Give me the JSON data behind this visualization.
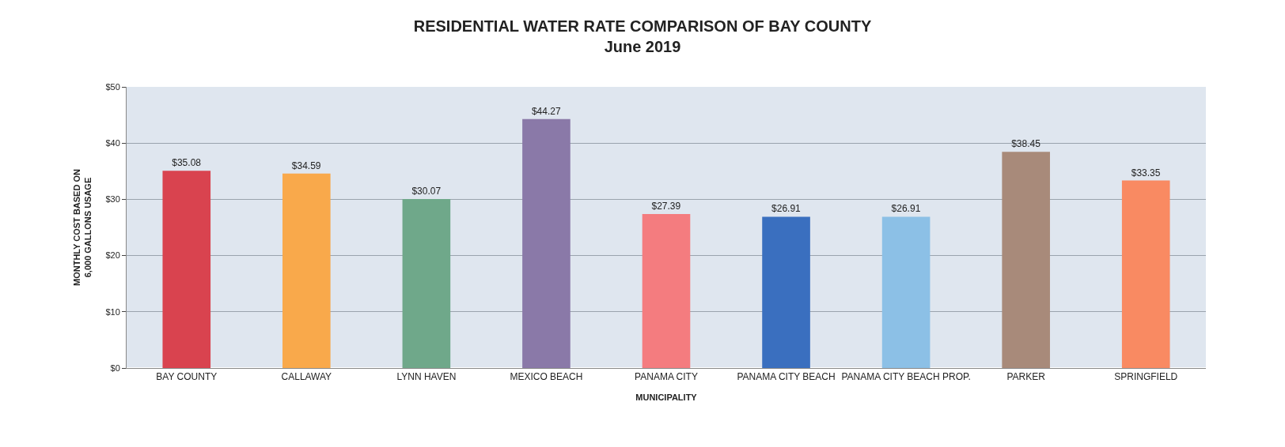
{
  "chart_data": {
    "type": "bar",
    "title": "RESIDENTIAL WATER RATE COMPARISON OF BAY COUNTY",
    "subtitle": "June 2019",
    "xlabel": "MUNICIPALITY",
    "ylabel": "MONTHLY COST BASED ON\n6,000 GALLONS USAGE",
    "categories": [
      "BAY COUNTY",
      "CALLAWAY",
      "LYNN HAVEN",
      "MEXICO BEACH",
      "PANAMA CITY",
      "PANAMA CITY BEACH",
      "PANAMA CITY BEACH PROP.",
      "PARKER",
      "SPRINGFIELD"
    ],
    "values": [
      35.08,
      34.59,
      30.07,
      44.27,
      27.39,
      26.91,
      26.91,
      38.45,
      33.35
    ],
    "value_labels": [
      "$35.08",
      "$34.59",
      "$30.07",
      "$44.27",
      "$27.39",
      "$26.91",
      "$26.91",
      "$38.45",
      "$33.35"
    ],
    "colors": [
      "#d9434f",
      "#f9a94b",
      "#6fa88a",
      "#8a79a8",
      "#f47c7f",
      "#3a6fbf",
      "#8cc0e6",
      "#a88a7a",
      "#f98a62"
    ],
    "ylim": [
      0,
      50
    ],
    "yticks": [
      {
        "value": 0,
        "label": "$0"
      },
      {
        "value": 10,
        "label": "$10"
      },
      {
        "value": 20,
        "label": "$20"
      },
      {
        "value": 30,
        "label": "$30"
      },
      {
        "value": 40,
        "label": "$40"
      },
      {
        "value": 50,
        "label": "$50"
      }
    ],
    "grid": "y",
    "legend": false
  }
}
